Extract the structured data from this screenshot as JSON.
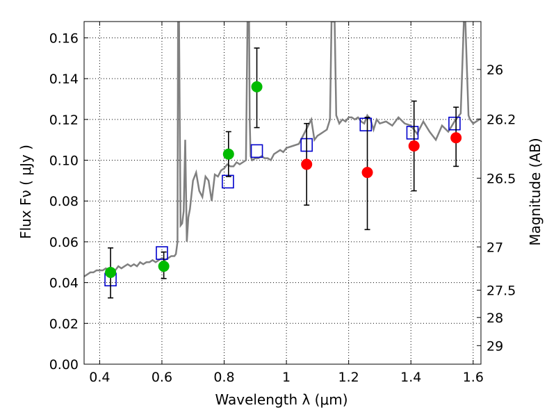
{
  "chart_data": {
    "type": "scatter",
    "xlabel": "Wavelength  λ (μm)",
    "ylabel": "Flux  Fν  ( μJy )",
    "y2label": "Magnitude (AB)",
    "xlim": [
      0.35,
      1.625
    ],
    "ylim": [
      0.0,
      0.168
    ],
    "grid": true,
    "x_ticks": [
      0.4,
      0.6,
      0.8,
      1.0,
      1.2,
      1.4,
      1.6
    ],
    "x_tick_labels": [
      "0.4",
      "0.6",
      "0.8",
      "1",
      "1.2",
      "1.4",
      "1.6"
    ],
    "y_ticks": [
      0.0,
      0.02,
      0.04,
      0.06,
      0.08,
      0.1,
      0.12,
      0.14,
      0.16
    ],
    "y_tick_labels": [
      "0.00",
      "0.02",
      "0.04",
      "0.06",
      "0.08",
      "0.10",
      "0.12",
      "0.14",
      "0.16"
    ],
    "y2_ticks": [
      {
        "label": "26",
        "flux": 0.1445
      },
      {
        "label": "26.2",
        "flux": 0.1202
      },
      {
        "label": "26.5",
        "flux": 0.0912
      },
      {
        "label": "27",
        "flux": 0.0575
      },
      {
        "label": "27.5",
        "flux": 0.0363
      },
      {
        "label": "28",
        "flux": 0.0229
      },
      {
        "label": "29",
        "flux": 0.0091
      }
    ],
    "spectrum": {
      "color": "#808080",
      "x": [
        0.35,
        0.36,
        0.37,
        0.38,
        0.39,
        0.4,
        0.41,
        0.42,
        0.43,
        0.44,
        0.45,
        0.46,
        0.47,
        0.48,
        0.49,
        0.5,
        0.51,
        0.52,
        0.53,
        0.54,
        0.55,
        0.56,
        0.57,
        0.58,
        0.59,
        0.6,
        0.61,
        0.62,
        0.63,
        0.64,
        0.645,
        0.65,
        0.652,
        0.655,
        0.66,
        0.665,
        0.67,
        0.675,
        0.68,
        0.685,
        0.69,
        0.7,
        0.71,
        0.72,
        0.73,
        0.74,
        0.75,
        0.76,
        0.77,
        0.78,
        0.79,
        0.8,
        0.81,
        0.82,
        0.83,
        0.84,
        0.85,
        0.86,
        0.87,
        0.875,
        0.88,
        0.882,
        0.885,
        0.89,
        0.9,
        0.91,
        0.92,
        0.93,
        0.94,
        0.95,
        0.96,
        0.97,
        0.98,
        0.99,
        1.0,
        1.02,
        1.04,
        1.06,
        1.08,
        1.09,
        1.1,
        1.11,
        1.12,
        1.13,
        1.14,
        1.145,
        1.15,
        1.155,
        1.16,
        1.17,
        1.18,
        1.19,
        1.2,
        1.21,
        1.22,
        1.23,
        1.24,
        1.25,
        1.26,
        1.27,
        1.28,
        1.29,
        1.3,
        1.32,
        1.34,
        1.36,
        1.38,
        1.4,
        1.42,
        1.44,
        1.46,
        1.48,
        1.5,
        1.52,
        1.54,
        1.56,
        1.57,
        1.575,
        1.58,
        1.585,
        1.59,
        1.6,
        1.61,
        1.62,
        1.625
      ],
      "y": [
        0.043,
        0.044,
        0.045,
        0.045,
        0.046,
        0.046,
        0.046,
        0.047,
        0.046,
        0.047,
        0.046,
        0.048,
        0.047,
        0.048,
        0.049,
        0.048,
        0.049,
        0.048,
        0.05,
        0.049,
        0.05,
        0.05,
        0.051,
        0.05,
        0.051,
        0.052,
        0.051,
        0.052,
        0.053,
        0.053,
        0.054,
        0.06,
        0.168,
        0.168,
        0.068,
        0.069,
        0.075,
        0.11,
        0.06,
        0.072,
        0.076,
        0.09,
        0.094,
        0.085,
        0.082,
        0.092,
        0.09,
        0.08,
        0.093,
        0.092,
        0.095,
        0.096,
        0.098,
        0.097,
        0.097,
        0.099,
        0.098,
        0.099,
        0.1,
        0.168,
        0.168,
        0.12,
        0.102,
        0.1,
        0.101,
        0.101,
        0.102,
        0.101,
        0.101,
        0.1,
        0.103,
        0.104,
        0.105,
        0.104,
        0.106,
        0.107,
        0.108,
        0.114,
        0.12,
        0.11,
        0.112,
        0.113,
        0.114,
        0.115,
        0.12,
        0.168,
        0.168,
        0.168,
        0.122,
        0.118,
        0.12,
        0.119,
        0.121,
        0.121,
        0.12,
        0.121,
        0.119,
        0.118,
        0.122,
        0.12,
        0.115,
        0.12,
        0.118,
        0.119,
        0.117,
        0.121,
        0.118,
        0.117,
        0.113,
        0.119,
        0.114,
        0.11,
        0.117,
        0.114,
        0.119,
        0.123,
        0.168,
        0.168,
        0.145,
        0.122,
        0.12,
        0.118,
        0.119,
        0.12,
        0.12
      ]
    },
    "series": [
      {
        "name": "",
        "marker": "circle",
        "color": "#00bb00",
        "points": [
          {
            "x": 0.435,
            "y": 0.045,
            "yerr_low": 0.0325,
            "yerr_high": 0.057
          },
          {
            "x": 0.606,
            "y": 0.048,
            "yerr_low": 0.042,
            "yerr_high": 0.055
          },
          {
            "x": 0.814,
            "y": 0.103,
            "yerr_low": 0.092,
            "yerr_high": 0.114
          },
          {
            "x": 0.905,
            "y": 0.136,
            "yerr_low": 0.116,
            "yerr_high": 0.155
          }
        ]
      },
      {
        "name": "",
        "marker": "circle",
        "color": "#ff0000",
        "points": [
          {
            "x": 1.065,
            "y": 0.098,
            "yerr_low": 0.078,
            "yerr_high": 0.118
          },
          {
            "x": 1.26,
            "y": 0.094,
            "yerr_low": 0.066,
            "yerr_high": 0.121
          },
          {
            "x": 1.41,
            "y": 0.107,
            "yerr_low": 0.085,
            "yerr_high": 0.129
          },
          {
            "x": 1.545,
            "y": 0.111,
            "yerr_low": 0.097,
            "yerr_high": 0.126
          }
        ]
      },
      {
        "name": "",
        "marker": "open-square",
        "color": "#0000cc",
        "points": [
          {
            "x": 0.435,
            "y": 0.0415
          },
          {
            "x": 0.6,
            "y": 0.0545
          },
          {
            "x": 0.812,
            "y": 0.0895
          },
          {
            "x": 0.905,
            "y": 0.1045
          },
          {
            "x": 1.065,
            "y": 0.1075
          },
          {
            "x": 1.255,
            "y": 0.1175
          },
          {
            "x": 1.405,
            "y": 0.1135
          },
          {
            "x": 1.54,
            "y": 0.118
          }
        ]
      }
    ]
  }
}
